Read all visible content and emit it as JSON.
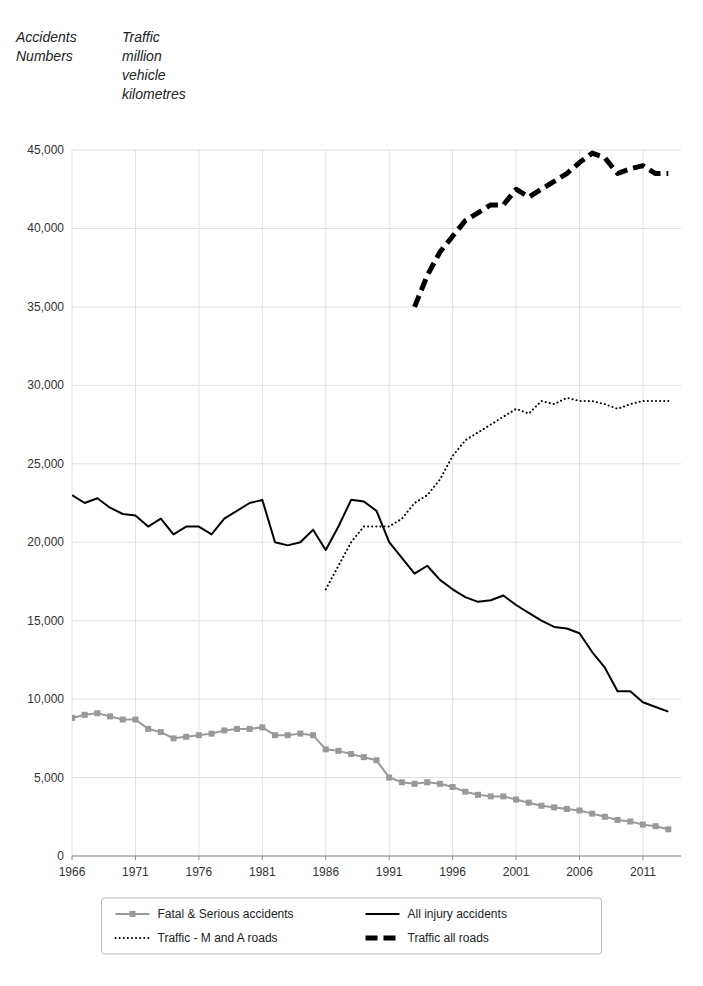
{
  "chart_data": {
    "type": "line",
    "annotations": [
      [
        "Accidents",
        "Numbers"
      ],
      [
        "Traffic",
        "million",
        "vehicle",
        "kilometres"
      ]
    ],
    "x": [
      1966,
      1967,
      1968,
      1969,
      1970,
      1971,
      1972,
      1973,
      1974,
      1975,
      1976,
      1977,
      1978,
      1979,
      1980,
      1981,
      1982,
      1983,
      1984,
      1985,
      1986,
      1987,
      1988,
      1989,
      1990,
      1991,
      1992,
      1993,
      1994,
      1995,
      1996,
      1997,
      1998,
      1999,
      2000,
      2001,
      2002,
      2003,
      2004,
      2005,
      2006,
      2007,
      2008,
      2009,
      2010,
      2011,
      2012,
      2013
    ],
    "series": [
      {
        "name": "Fatal & Serious accidents",
        "color": "#999999",
        "line_style": "solid",
        "marker": "square",
        "values": [
          8800,
          9000,
          9100,
          8900,
          8700,
          8700,
          8100,
          7900,
          7500,
          7600,
          7700,
          7800,
          8000,
          8100,
          8100,
          8200,
          7700,
          7700,
          7800,
          7700,
          6800,
          6700,
          6500,
          6300,
          6100,
          5000,
          4700,
          4600,
          4700,
          4600,
          4400,
          4100,
          3900,
          3800,
          3800,
          3600,
          3400,
          3200,
          3100,
          3000,
          2900,
          2700,
          2500,
          2300,
          2200,
          2000,
          1900,
          1700
        ]
      },
      {
        "name": "All injury accidents",
        "color": "#000000",
        "line_style": "solid",
        "values": [
          23000,
          22500,
          22800,
          22200,
          21800,
          21700,
          21000,
          21500,
          20500,
          21000,
          21000,
          20500,
          21500,
          22000,
          22500,
          22700,
          20000,
          19800,
          20000,
          20800,
          19500,
          21000,
          22700,
          22600,
          22000,
          20000,
          19000,
          18000,
          18500,
          17600,
          17000,
          16500,
          16200,
          16300,
          16600,
          16000,
          15500,
          15000,
          14600,
          14500,
          14200,
          13000,
          12000,
          10500,
          10500,
          9800,
          9500,
          9200
        ]
      },
      {
        "name": "Traffic - M and A roads",
        "color": "#000000",
        "line_style": "dotted",
        "values": [
          null,
          null,
          null,
          null,
          null,
          null,
          null,
          null,
          null,
          null,
          null,
          null,
          null,
          null,
          null,
          null,
          null,
          null,
          null,
          null,
          17000,
          18500,
          20000,
          21000,
          21000,
          21000,
          21500,
          22500,
          23000,
          24000,
          25500,
          26500,
          27000,
          27500,
          28000,
          28500,
          28200,
          29000,
          28800,
          29200,
          29000,
          29000,
          28800,
          28500,
          28800,
          29000,
          29000,
          29000
        ]
      },
      {
        "name": "Traffic all roads",
        "color": "#000000",
        "line_style": "dashed",
        "values": [
          null,
          null,
          null,
          null,
          null,
          null,
          null,
          null,
          null,
          null,
          null,
          null,
          null,
          null,
          null,
          null,
          null,
          null,
          null,
          null,
          null,
          null,
          null,
          null,
          null,
          null,
          null,
          35000,
          37000,
          38500,
          39500,
          40500,
          41000,
          41500,
          41500,
          42500,
          42000,
          42500,
          43000,
          43500,
          44200,
          44800,
          44500,
          43500,
          43800,
          44000,
          43500,
          43500
        ]
      }
    ],
    "xlim": [
      1966,
      2014
    ],
    "xticks": [
      1966,
      1971,
      1976,
      1981,
      1986,
      1991,
      1996,
      2001,
      2006,
      2011
    ],
    "ylim": [
      0,
      45000
    ],
    "yticks": [
      0,
      {
        "value": 5000,
        "label": "5,000"
      },
      {
        "value": 10000,
        "label": "10,000"
      },
      {
        "value": 15000,
        "label": "15,000"
      },
      {
        "value": 20000,
        "label": "20,000"
      },
      {
        "value": 25000,
        "label": "25,000"
      },
      {
        "value": 30000,
        "label": "30,000"
      },
      {
        "value": 35000,
        "label": "35,000"
      },
      {
        "value": 40000,
        "label": "40,000"
      },
      {
        "value": 45000,
        "label": "45,000"
      }
    ],
    "grid": true,
    "legend": "bottom"
  }
}
